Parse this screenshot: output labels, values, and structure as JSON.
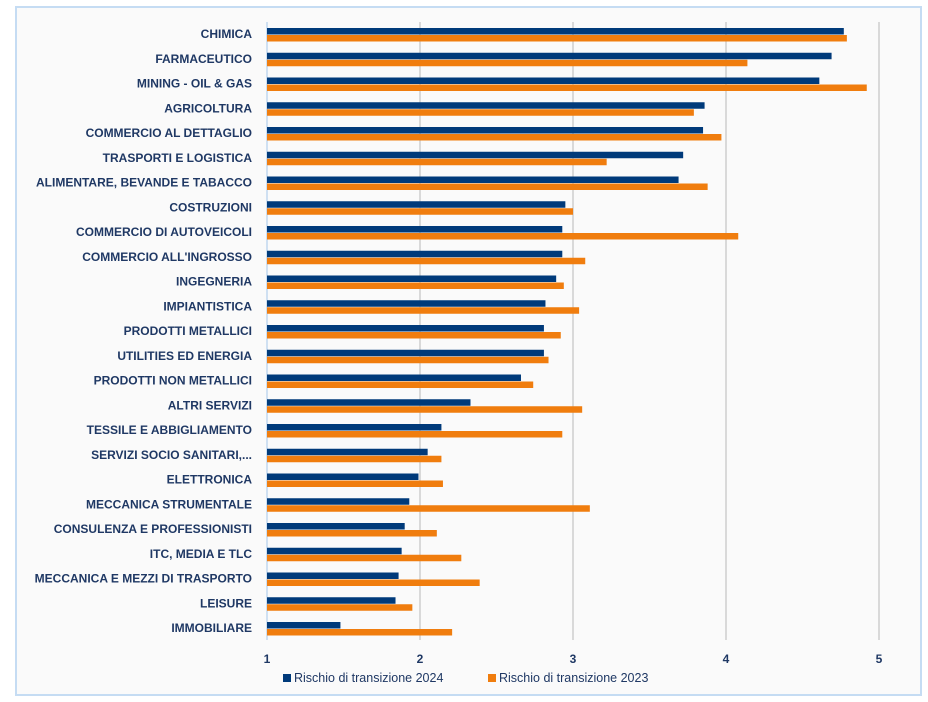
{
  "chart_data": {
    "type": "bar",
    "orientation": "horizontal",
    "categories": [
      "CHIMICA",
      "FARMACEUTICO",
      "MINING - OIL & GAS",
      "AGRICOLTURA",
      "COMMERCIO AL DETTAGLIO",
      "TRASPORTI E LOGISTICA",
      "ALIMENTARE, BEVANDE E TABACCO",
      "COSTRUZIONI",
      "COMMERCIO DI AUTOVEICOLI",
      "COMMERCIO ALL'INGROSSO",
      "INGEGNERIA",
      "IMPIANTISTICA",
      "PRODOTTI METALLICI",
      "UTILITIES ED ENERGIA",
      "PRODOTTI NON METALLICI",
      "ALTRI SERVIZI",
      "TESSILE E ABBIGLIAMENTO",
      "SERVIZI SOCIO SANITARI,...",
      "ELETTRONICA",
      "MECCANICA STRUMENTALE",
      "CONSULENZA E PROFESSIONISTI",
      "ITC, MEDIA E TLC",
      "MECCANICA E MEZZI DI TRASPORTO",
      "LEISURE",
      "IMMOBILIARE"
    ],
    "series": [
      {
        "name": "Rischio di transizione 2024",
        "color": "#003a7a",
        "values": [
          4.77,
          4.69,
          4.61,
          3.86,
          3.85,
          3.72,
          3.69,
          2.95,
          2.93,
          2.93,
          2.89,
          2.82,
          2.81,
          2.81,
          2.66,
          2.33,
          2.14,
          2.05,
          1.99,
          1.93,
          1.9,
          1.88,
          1.86,
          1.84,
          1.48
        ]
      },
      {
        "name": "Rischio di transizione 2023",
        "color": "#f07d0e",
        "values": [
          4.79,
          4.14,
          4.92,
          3.79,
          3.97,
          3.22,
          3.88,
          3.0,
          4.08,
          3.08,
          2.94,
          3.04,
          2.92,
          2.84,
          2.74,
          3.06,
          2.93,
          2.14,
          2.15,
          3.11,
          2.11,
          2.27,
          2.39,
          1.95,
          2.21
        ]
      }
    ],
    "xlim": [
      1,
      5
    ],
    "xticks": [
      "1",
      "2",
      "3",
      "4",
      "5"
    ],
    "grid": true,
    "legend": "bottom"
  }
}
